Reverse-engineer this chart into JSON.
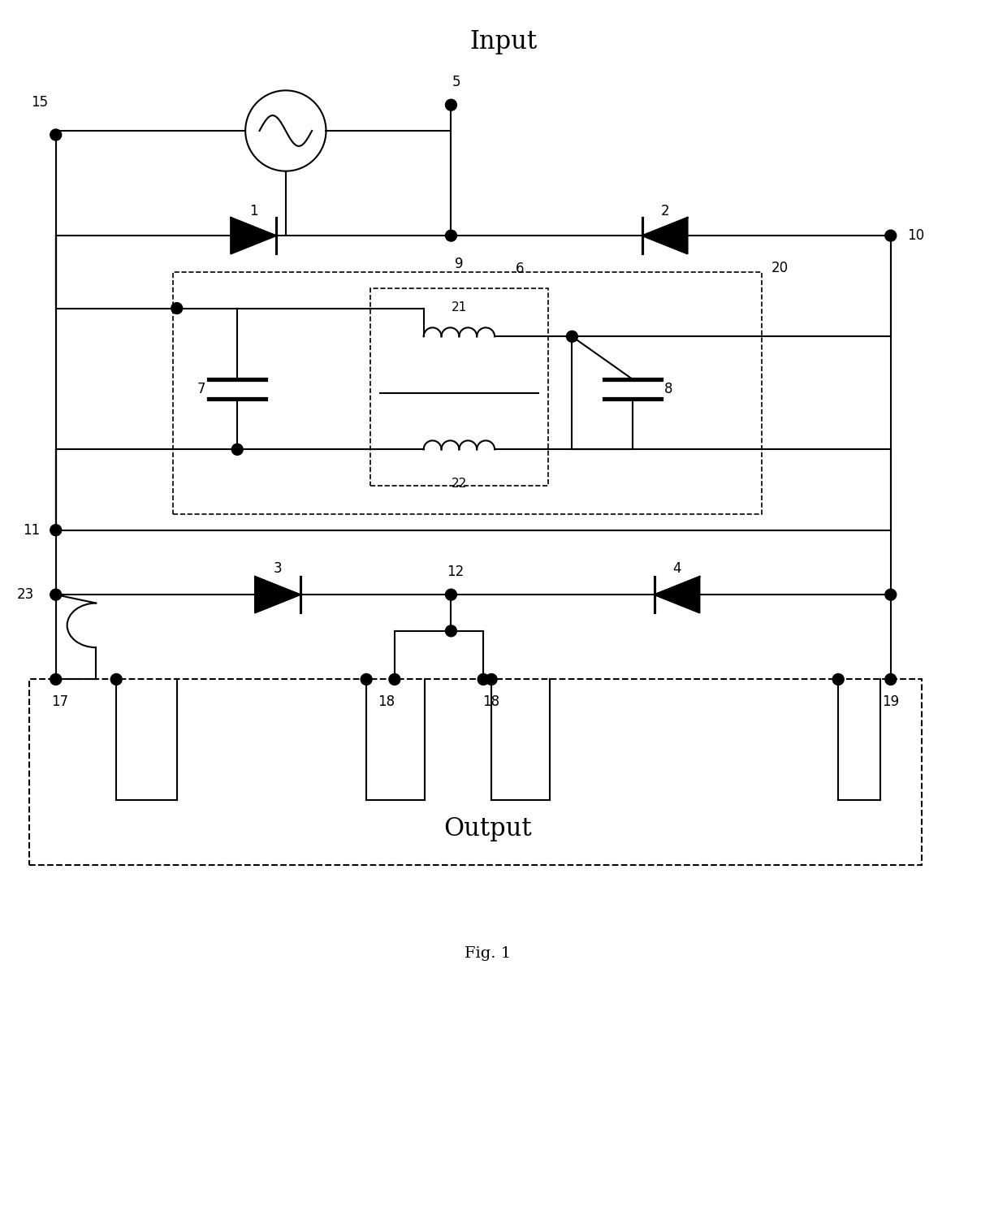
{
  "title": "Input",
  "fig_label": "Fig. 1",
  "output_label": "Output",
  "bg_color": "#ffffff",
  "line_color": "#000000",
  "lw": 1.5,
  "fig_width": 12.4,
  "fig_height": 15.07
}
